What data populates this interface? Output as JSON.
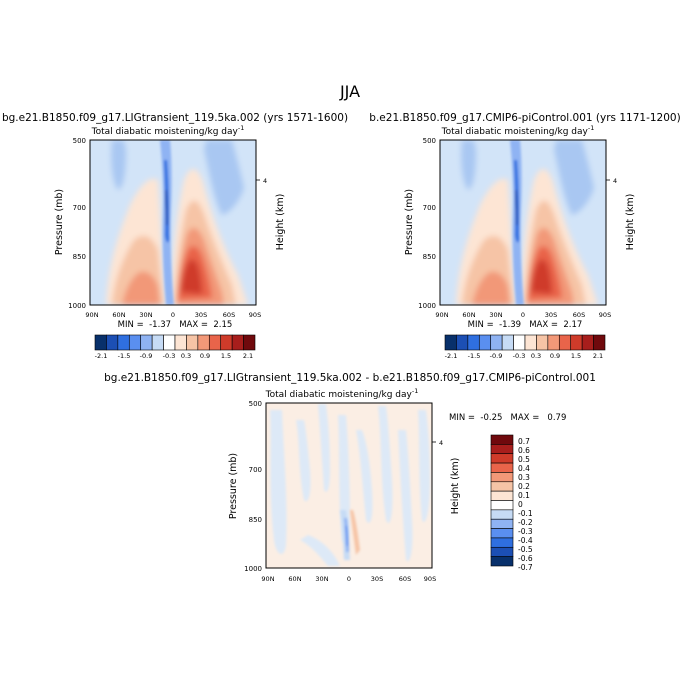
{
  "figure": {
    "season": "JJA",
    "panels": [
      {
        "title": "bg.e21.B1850.f09_g17.LIGtransient_119.5ka.002 (yrs 1571-1600)",
        "subtitle": "Total diabatic moistening/kg day",
        "ylabel": "Pressure (mb)",
        "ylabel_right": "Height (km)",
        "stats": "MIN =  -1.37   MAX =  2.15"
      },
      {
        "title": "b.e21.B1850.f09_g17.CMIP6-piControl.001 (yrs 1171-1200)",
        "subtitle": "Total diabatic moistening/kg day",
        "ylabel": "Pressure (mb)",
        "ylabel_right": "Height (km)",
        "stats": "MIN =  -1.39   MAX =  2.17"
      },
      {
        "title": "bg.e21.B1850.f09_g17.LIGtransient_119.5ka.002 - b.e21.B1850.f09_g17.CMIP6-piControl.001",
        "subtitle": "Total diabatic moistening/kg day",
        "ylabel": "Pressure (mb)",
        "ylabel_right": "Height (km)",
        "stats": "MIN =  -0.25   MAX =   0.79"
      }
    ],
    "unit_exponent": "-1",
    "height_tick_label": "4",
    "pressure_ticks": [
      "500",
      "700",
      "850",
      "1000"
    ],
    "lat_ticks": [
      "90N",
      "60N",
      "30N",
      "0",
      "30S",
      "60S",
      "90S"
    ]
  },
  "chart_data": [
    {
      "type": "heatmap",
      "title": "bg.e21.B1850.f09_g17.LIGtransient_119.5ka.002 (yrs 1571-1600)",
      "x": [
        "90N",
        "60N",
        "30N",
        "0",
        "30S",
        "60S",
        "90S"
      ],
      "y": [
        500,
        700,
        850,
        1000
      ],
      "ylabel": "Pressure (mb)",
      "min": -1.37,
      "max": 2.15,
      "colorbar_levels": [
        "-2.1",
        "-1.5",
        "-0.9",
        "-0.3",
        "0.3",
        "0.9",
        "1.5",
        "2.1"
      ]
    },
    {
      "type": "heatmap",
      "title": "b.e21.B1850.f09_g17.CMIP6-piControl.001 (yrs 1171-1200)",
      "x": [
        "90N",
        "60N",
        "30N",
        "0",
        "30S",
        "60S",
        "90S"
      ],
      "y": [
        500,
        700,
        850,
        1000
      ],
      "ylabel": "Pressure (mb)",
      "min": -1.39,
      "max": 2.17,
      "colorbar_levels": [
        "-2.1",
        "-1.5",
        "-0.9",
        "-0.3",
        "0.3",
        "0.9",
        "1.5",
        "2.1"
      ]
    },
    {
      "type": "heatmap",
      "title": "bg.e21.B1850.f09_g17.LIGtransient_119.5ka.002 - b.e21.B1850.f09_g17.CMIP6-piControl.001",
      "x": [
        "90N",
        "60N",
        "30N",
        "0",
        "30S",
        "60S",
        "90S"
      ],
      "y": [
        500,
        700,
        850,
        1000
      ],
      "ylabel": "Pressure (mb)",
      "min": -0.25,
      "max": 0.79,
      "colorbar_levels": [
        "0.7",
        "0.6",
        "0.5",
        "0.4",
        "0.3",
        "0.2",
        "0.1",
        "0",
        "-0.1",
        "-0.2",
        "-0.3",
        "-0.4",
        "-0.5",
        "-0.6",
        "-0.7"
      ]
    }
  ],
  "colors": {
    "top_colorbar": [
      "#08306b",
      "#1c4fb4",
      "#2f6fe0",
      "#5a8ff0",
      "#8fb3f3",
      "#c6dbf5",
      "#ffffff",
      "#fde5d4",
      "#f6c4a6",
      "#f29878",
      "#e9644a",
      "#cf3b2a",
      "#a81e1c",
      "#70090d"
    ],
    "diff_colorbar": [
      "#70090d",
      "#a81e1c",
      "#cf3b2a",
      "#e9644a",
      "#f29878",
      "#f6c4a6",
      "#fde5d4",
      "#ffffff",
      "#c6dbf5",
      "#8fb3f3",
      "#5a8ff0",
      "#2f6fe0",
      "#1c4fb4",
      "#08306b"
    ],
    "background_field": "#d2e4f8"
  }
}
